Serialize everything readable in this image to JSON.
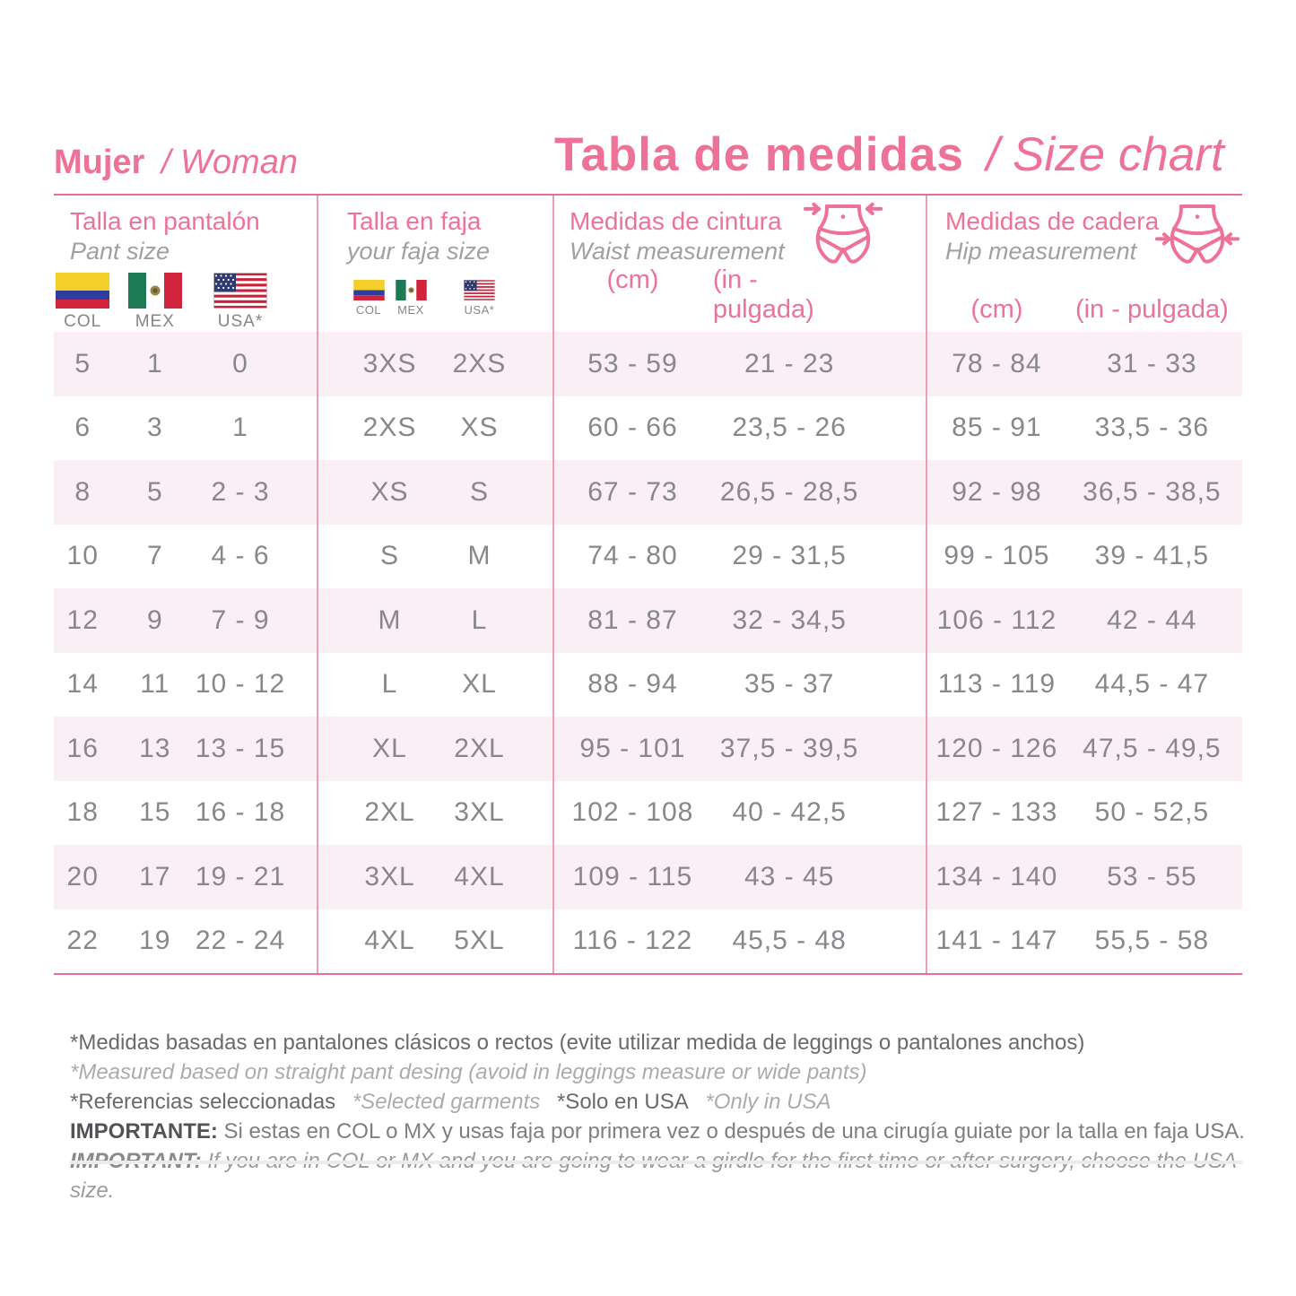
{
  "accent_color": "#EE7298",
  "row_band_color": "#FAEFF4",
  "page": {
    "section_title_es": "Mujer",
    "section_title_en": "/ Woman",
    "main_title_es": "Tabla de medidas",
    "main_title_en": "/ Size chart"
  },
  "columns": {
    "pant": {
      "title_es": "Talla en pantalón",
      "title_en": "Pant size",
      "flags": [
        {
          "icon": "flag-colombia",
          "label": "COL"
        },
        {
          "icon": "flag-mexico",
          "label": "MEX"
        },
        {
          "icon": "flag-usa",
          "label": "USA*"
        }
      ]
    },
    "faja": {
      "title_es": "Talla en faja",
      "title_en": "your faja size",
      "flags": [
        {
          "icon": "flag-colombia",
          "label": "COL"
        },
        {
          "icon": "flag-mexico",
          "label": "MEX"
        },
        {
          "icon": "flag-usa",
          "label": "USA*"
        }
      ]
    },
    "waist": {
      "title_es": "Medidas de cintura",
      "title_en": "Waist measurement",
      "icon": "waist-measure",
      "unit_cm": "(cm)",
      "unit_in": "(in - pulgada)"
    },
    "hip": {
      "title_es": "Medidas de cadera",
      "title_en": "Hip measurement",
      "icon": "hip-measure",
      "unit_cm": "(cm)",
      "unit_in": "(in - pulgada)"
    }
  },
  "rows": [
    {
      "pant": {
        "col": "5",
        "mex": "1",
        "usa": "0"
      },
      "faja": {
        "colmex": "3XS",
        "usa": "2XS"
      },
      "waist": {
        "cm": "53 - 59",
        "in": "21 - 23"
      },
      "hip": {
        "cm": "78 - 84",
        "in": "31 - 33"
      }
    },
    {
      "pant": {
        "col": "6",
        "mex": "3",
        "usa": "1"
      },
      "faja": {
        "colmex": "2XS",
        "usa": "XS"
      },
      "waist": {
        "cm": "60 - 66",
        "in": "23,5 - 26"
      },
      "hip": {
        "cm": "85 - 91",
        "in": "33,5 - 36"
      }
    },
    {
      "pant": {
        "col": "8",
        "mex": "5",
        "usa": "2 - 3"
      },
      "faja": {
        "colmex": "XS",
        "usa": "S"
      },
      "waist": {
        "cm": "67 - 73",
        "in": "26,5 - 28,5"
      },
      "hip": {
        "cm": "92 - 98",
        "in": "36,5 - 38,5"
      }
    },
    {
      "pant": {
        "col": "10",
        "mex": "7",
        "usa": "4 - 6"
      },
      "faja": {
        "colmex": "S",
        "usa": "M"
      },
      "waist": {
        "cm": "74 - 80",
        "in": "29 - 31,5"
      },
      "hip": {
        "cm": "99 - 105",
        "in": "39 - 41,5"
      }
    },
    {
      "pant": {
        "col": "12",
        "mex": "9",
        "usa": "7 - 9"
      },
      "faja": {
        "colmex": "M",
        "usa": "L"
      },
      "waist": {
        "cm": "81 - 87",
        "in": "32 - 34,5"
      },
      "hip": {
        "cm": "106 - 112",
        "in": "42 - 44"
      }
    },
    {
      "pant": {
        "col": "14",
        "mex": "11",
        "usa": "10 - 12"
      },
      "faja": {
        "colmex": "L",
        "usa": "XL"
      },
      "waist": {
        "cm": "88 - 94",
        "in": "35 - 37"
      },
      "hip": {
        "cm": "113 - 119",
        "in": "44,5 - 47"
      }
    },
    {
      "pant": {
        "col": "16",
        "mex": "13",
        "usa": "13 - 15"
      },
      "faja": {
        "colmex": "XL",
        "usa": "2XL"
      },
      "waist": {
        "cm": "95 - 101",
        "in": "37,5 - 39,5"
      },
      "hip": {
        "cm": "120 - 126",
        "in": "47,5 - 49,5"
      }
    },
    {
      "pant": {
        "col": "18",
        "mex": "15",
        "usa": "16 - 18"
      },
      "faja": {
        "colmex": "2XL",
        "usa": "3XL"
      },
      "waist": {
        "cm": "102 - 108",
        "in": "40 - 42,5"
      },
      "hip": {
        "cm": "127 - 133",
        "in": "50 - 52,5"
      }
    },
    {
      "pant": {
        "col": "20",
        "mex": "17",
        "usa": "19 - 21"
      },
      "faja": {
        "colmex": "3XL",
        "usa": "4XL"
      },
      "waist": {
        "cm": "109 - 115",
        "in": "43 - 45"
      },
      "hip": {
        "cm": "134 - 140",
        "in": "53 - 55"
      }
    },
    {
      "pant": {
        "col": "22",
        "mex": "19",
        "usa": "22 - 24"
      },
      "faja": {
        "colmex": "4XL",
        "usa": "5XL"
      },
      "waist": {
        "cm": "116 - 122",
        "in": "45,5 - 48"
      },
      "hip": {
        "cm": "141 - 147",
        "in": "55,5 - 58"
      }
    }
  ],
  "notes": {
    "line1": "*Medidas basadas en pantalones clásicos o rectos (evite utilizar medida de leggings o pantalones anchos)",
    "line2": "*Measured based on straight pant desing (avoid in leggings measure or wide pants)",
    "line3_parts": [
      "*Referencias seleccionadas",
      "*Selected garments",
      "*Solo en USA",
      "*Only in USA"
    ],
    "important_es_label": "IMPORTANTE:",
    "important_es_text": " Si estas en COL o MX y usas faja por primera vez o después de una cirugía guiate por la talla en faja USA.",
    "important_en_label": "IMPORTANT:",
    "important_en_text": " If you are in COL or MX and you are going to wear a girdle for the first time or after surgery, choose the USA size."
  }
}
